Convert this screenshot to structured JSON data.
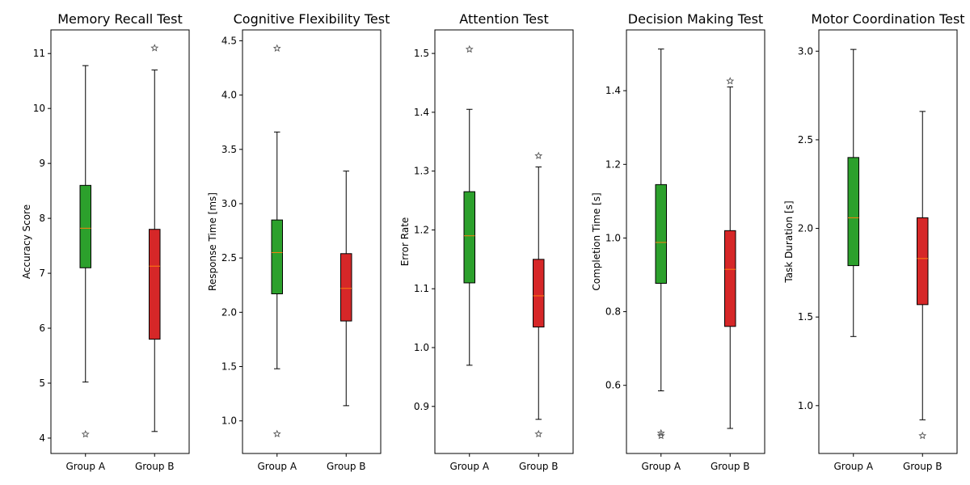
{
  "colors": {
    "group_a": "#2ca02c",
    "group_b": "#d62728",
    "median": "#ff7f0e",
    "frame": "#000000"
  },
  "chart_data": [
    {
      "type": "box",
      "title": "Memory Recall Test",
      "ylabel": "Accuracy Score",
      "ylim": [
        3.72,
        11.43
      ],
      "yticks": [
        4,
        5,
        6,
        7,
        8,
        9,
        10,
        11
      ],
      "categories": [
        "Group A",
        "Group B"
      ],
      "boxes": [
        {
          "q1": 7.1,
          "median": 7.82,
          "q3": 8.6,
          "whisker_low": 5.02,
          "whisker_high": 10.78,
          "fliers": [
            4.07
          ]
        },
        {
          "q1": 5.8,
          "median": 7.13,
          "q3": 7.8,
          "whisker_low": 4.12,
          "whisker_high": 10.7,
          "fliers": [
            11.1
          ]
        }
      ]
    },
    {
      "type": "box",
      "title": "Cognitive Flexibility Test",
      "ylabel": "Response Time [ms]",
      "ylim": [
        0.7,
        4.6
      ],
      "yticks": [
        1.0,
        1.5,
        2.0,
        2.5,
        3.0,
        3.5,
        4.0,
        4.5
      ],
      "categories": [
        "Group A",
        "Group B"
      ],
      "boxes": [
        {
          "q1": 2.17,
          "median": 2.55,
          "q3": 2.85,
          "whisker_low": 1.48,
          "whisker_high": 3.66,
          "fliers": [
            0.88,
            4.43
          ]
        },
        {
          "q1": 1.92,
          "median": 2.22,
          "q3": 2.54,
          "whisker_low": 1.14,
          "whisker_high": 3.3,
          "fliers": []
        }
      ]
    },
    {
      "type": "box",
      "title": "Attention Test",
      "ylabel": "Error Rate",
      "ylim": [
        0.82,
        1.54
      ],
      "yticks": [
        0.9,
        1.0,
        1.1,
        1.2,
        1.3,
        1.4,
        1.5
      ],
      "categories": [
        "Group A",
        "Group B"
      ],
      "boxes": [
        {
          "q1": 1.11,
          "median": 1.19,
          "q3": 1.265,
          "whisker_low": 0.97,
          "whisker_high": 1.405,
          "fliers": [
            1.507
          ]
        },
        {
          "q1": 1.035,
          "median": 1.088,
          "q3": 1.15,
          "whisker_low": 0.878,
          "whisker_high": 1.307,
          "fliers": [
            0.853,
            1.326
          ]
        }
      ]
    },
    {
      "type": "box",
      "title": "Decision Making Test",
      "ylabel": "Completion Time [s]",
      "ylim": [
        0.415,
        1.565
      ],
      "yticks": [
        0.6,
        0.8,
        1.0,
        1.2,
        1.4
      ],
      "categories": [
        "Group A",
        "Group B"
      ],
      "boxes": [
        {
          "q1": 0.877,
          "median": 0.988,
          "q3": 1.145,
          "whisker_low": 0.585,
          "whisker_high": 1.513,
          "fliers": [
            0.463,
            0.47
          ]
        },
        {
          "q1": 0.76,
          "median": 0.915,
          "q3": 1.02,
          "whisker_low": 0.483,
          "whisker_high": 1.41,
          "fliers": [
            1.426
          ]
        }
      ]
    },
    {
      "type": "box",
      "title": "Motor Coordination Test",
      "ylabel": "Task Duration [s]",
      "ylim": [
        0.73,
        3.12
      ],
      "yticks": [
        1.0,
        1.5,
        2.0,
        2.5,
        3.0
      ],
      "categories": [
        "Group A",
        "Group B"
      ],
      "boxes": [
        {
          "q1": 1.79,
          "median": 2.06,
          "q3": 2.4,
          "whisker_low": 1.39,
          "whisker_high": 3.01,
          "fliers": []
        },
        {
          "q1": 1.57,
          "median": 1.83,
          "q3": 2.06,
          "whisker_low": 0.92,
          "whisker_high": 2.66,
          "fliers": [
            0.83
          ]
        }
      ]
    }
  ]
}
